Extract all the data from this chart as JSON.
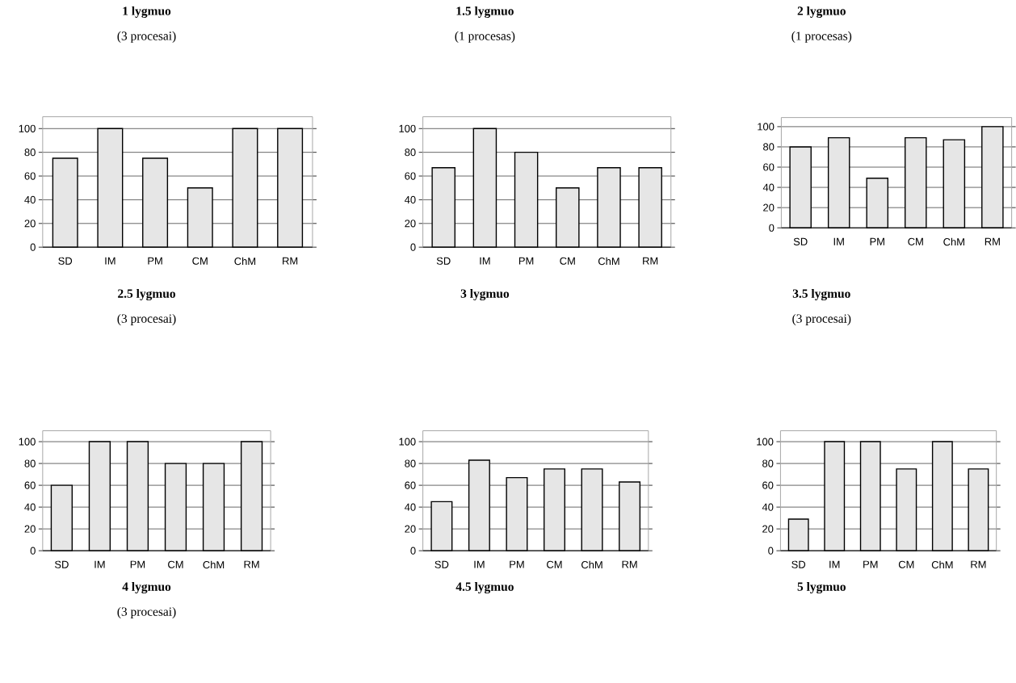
{
  "chart_data": [
    {
      "type": "bar",
      "title": "1 lygmuo",
      "subtitle": "(3 procesai)",
      "categories": [
        "SD",
        "IM",
        "PM",
        "CM",
        "ChM",
        "RM"
      ],
      "values": [
        75,
        100,
        75,
        50,
        100,
        100
      ],
      "color": "#e6e6e6",
      "ylim": [
        0,
        110
      ],
      "yticks": [
        0,
        20,
        40,
        60,
        80,
        100
      ],
      "grid": "y"
    },
    {
      "type": "bar",
      "title": "1.5 lygmuo",
      "subtitle": "(1 procesas)",
      "categories": [
        "SD",
        "IM",
        "PM",
        "CM",
        "ChM",
        "RM"
      ],
      "values": [
        67,
        100,
        80,
        50,
        67,
        67
      ],
      "color": "#e6e6e6",
      "ylim": [
        0,
        110
      ],
      "yticks": [
        0,
        20,
        40,
        60,
        80,
        100
      ],
      "grid": "y"
    },
    {
      "type": "bar",
      "title": "2 lygmuo",
      "subtitle": "(1 procesas)",
      "categories": [
        "SD",
        "IM",
        "PM",
        "CM",
        "ChM",
        "RM"
      ],
      "values": [
        80,
        89,
        49,
        89,
        87,
        100
      ],
      "color": "#e6e6e6",
      "ylim": [
        0,
        109
      ],
      "yticks": [
        0,
        20,
        40,
        60,
        80,
        100
      ],
      "grid": "y"
    },
    {
      "type": "bar",
      "title": "2.5 lygmuo",
      "subtitle": "(3 procesai)",
      "categories": [
        "SD",
        "IM",
        "PM",
        "CM",
        "ChM",
        "RM"
      ],
      "values": [
        60,
        100,
        100,
        80,
        80,
        100
      ],
      "color": "#e6e6e6",
      "ylim": [
        0,
        110
      ],
      "yticks": [
        0,
        20,
        40,
        60,
        80,
        100
      ],
      "grid": "y"
    },
    {
      "type": "bar",
      "title": "3 lygmuo",
      "categories": [
        "SD",
        "IM",
        "PM",
        "CM",
        "ChM",
        "RM"
      ],
      "values": [
        45,
        83,
        67,
        75,
        75,
        63
      ],
      "color": "#e6e6e6",
      "ylim": [
        0,
        110
      ],
      "yticks": [
        0,
        20,
        40,
        60,
        80,
        100
      ],
      "grid": "y"
    },
    {
      "type": "bar",
      "title": "3.5 lygmuo",
      "subtitle": "(3 procesai)",
      "categories": [
        "SD",
        "IM",
        "PM",
        "CM",
        "ChM",
        "RM"
      ],
      "values": [
        29,
        100,
        100,
        75,
        100,
        75
      ],
      "color": "#e6e6e6",
      "ylim": [
        0,
        110
      ],
      "yticks": [
        0,
        20,
        40,
        60,
        80,
        100
      ],
      "grid": "y"
    },
    {
      "type": "other",
      "title": "4 lygmuo",
      "subtitle": "(3 procesai)"
    },
    {
      "type": "other",
      "title": "4.5 lygmuo"
    },
    {
      "type": "other",
      "title": "5 lygmuo"
    }
  ]
}
